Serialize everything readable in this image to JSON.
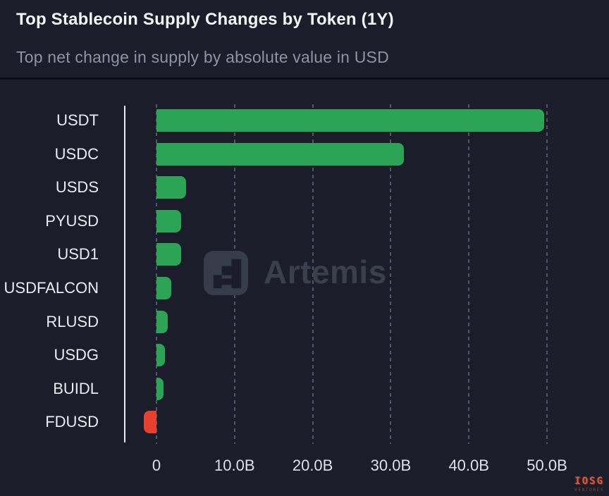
{
  "header": {
    "title": "Top Stablecoin Supply Changes by Token (1Y)",
    "subtitle": "Top net change in supply by absolute value in USD"
  },
  "watermark": {
    "artemis": "Artemis",
    "iosg": "IOSG",
    "iosg_sub": "VENTURES"
  },
  "colors": {
    "background": "#1b1e2a",
    "positive_bar": "#2da355",
    "negative_bar": "#e8402f",
    "axis_line": "#e8ebf1",
    "gridline": "#98a2b6",
    "title_text": "#f3f5f9",
    "subtitle_text": "#8d93a2",
    "label_text": "#e9ecf1"
  },
  "chart_data": {
    "type": "bar",
    "orientation": "horizontal",
    "title": "Top Stablecoin Supply Changes by Token (1Y)",
    "subtitle": "Top net change in supply by absolute value in USD",
    "categories": [
      "USDT",
      "USDC",
      "USDS",
      "PYUSD",
      "USD1",
      "USDFALCON",
      "RLUSD",
      "USDG",
      "BUIDL",
      "FDUSD"
    ],
    "values": [
      49.6,
      31.7,
      3.8,
      3.2,
      3.2,
      1.9,
      1.4,
      1.1,
      0.9,
      -1.6
    ],
    "unit": "billion USD",
    "value_format": "B = billions of USD net supply change",
    "x_ticks": [
      "0",
      "10.0B",
      "20.0B",
      "30.0B",
      "40.0B",
      "50.0B"
    ],
    "x_tick_values": [
      0,
      10,
      20,
      30,
      40,
      50
    ],
    "xlim": [
      -4,
      55.5
    ],
    "grid": "vertical-dashed",
    "legend": "none",
    "positive_color": "#2da355",
    "negative_color": "#e8402f"
  }
}
